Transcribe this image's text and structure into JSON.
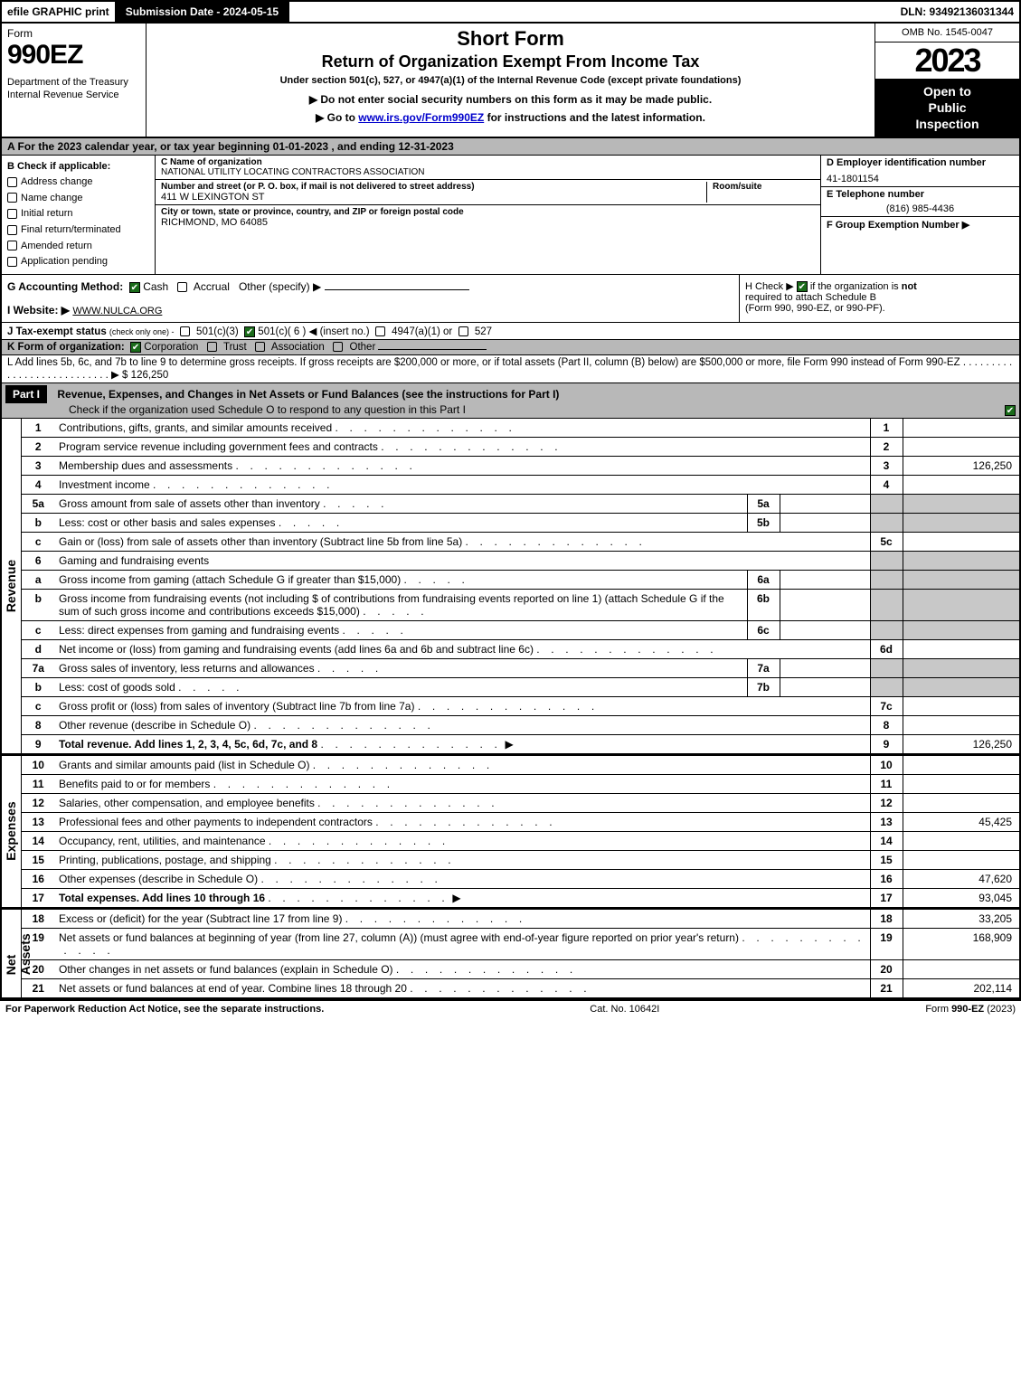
{
  "topbar": {
    "efile": "efile GRAPHIC print",
    "submission": "Submission Date - 2024-05-15",
    "dln": "DLN: 93492136031344"
  },
  "header": {
    "form_label": "Form",
    "form_number": "990EZ",
    "dept": "Department of the Treasury\nInternal Revenue Service",
    "title1": "Short Form",
    "title2": "Return of Organization Exempt From Income Tax",
    "subtitle": "Under section 501(c), 527, or 4947(a)(1) of the Internal Revenue Code (except private foundations)",
    "note1_prefix": "▶ Do not enter social security numbers on this form as it may be made public.",
    "note2_prefix": "▶ Go to ",
    "note2_link": "www.irs.gov/Form990EZ",
    "note2_suffix": " for instructions and the latest information.",
    "omb": "OMB No. 1545-0047",
    "year": "2023",
    "inspection1": "Open to",
    "inspection2": "Public",
    "inspection3": "Inspection"
  },
  "lineA": "A  For the 2023 calendar year, or tax year beginning 01-01-2023 , and ending 12-31-2023",
  "sectionB": {
    "header": "B  Check if applicable:",
    "opts": [
      "Address change",
      "Name change",
      "Initial return",
      "Final return/terminated",
      "Amended return",
      "Application pending"
    ]
  },
  "sectionC": {
    "name_label": "C Name of organization",
    "name": "NATIONAL UTILITY LOCATING CONTRACTORS ASSOCIATION",
    "street_label": "Number and street (or P. O. box, if mail is not delivered to street address)",
    "room_label": "Room/suite",
    "street": "411 W LEXINGTON ST",
    "city_label": "City or town, state or province, country, and ZIP or foreign postal code",
    "city": "RICHMOND, MO  64085"
  },
  "sectionD": {
    "label": "D Employer identification number",
    "ein": "41-1801154",
    "tel_label": "E Telephone number",
    "tel": "(816) 985-4436",
    "grp_label": "F Group Exemption Number   ▶"
  },
  "sectionG": {
    "label": "G Accounting Method:",
    "cash": "Cash",
    "accrual": "Accrual",
    "other": "Other (specify) ▶"
  },
  "sectionH": {
    "text1": "H  Check ▶",
    "text2": "if the organization is ",
    "not": "not",
    "text3": "required to attach Schedule B",
    "text4": "(Form 990, 990-EZ, or 990-PF)."
  },
  "sectionI": {
    "label": "I Website: ▶",
    "value": "WWW.NULCA.ORG"
  },
  "sectionJ": {
    "label": "J Tax-exempt status",
    "note": "(check only one) -",
    "o1": "501(c)(3)",
    "o2": "501(c)( 6 ) ◀ (insert no.)",
    "o3": "4947(a)(1) or",
    "o4": "527"
  },
  "sectionK": {
    "label": "K Form of organization:",
    "o1": "Corporation",
    "o2": "Trust",
    "o3": "Association",
    "o4": "Other"
  },
  "sectionL": {
    "text": "L Add lines 5b, 6c, and 7b to line 9 to determine gross receipts. If gross receipts are $200,000 or more, or if total assets (Part II, column (B) below) are $500,000 or more, file Form 990 instead of Form 990-EZ",
    "dots": " .  .  .  .  .  .  .  .  .  .  .  .  .  .  .  .  .  .  .  .  .  .  .  .  .  .  . ▶ $",
    "amount": "126,250"
  },
  "partI": {
    "label": "Part I",
    "title": "Revenue, Expenses, and Changes in Net Assets or Fund Balances (see the instructions for Part I)",
    "check": "Check if the organization used Schedule O to respond to any question in this Part I"
  },
  "sideLabels": {
    "revenue": "Revenue",
    "expenses": "Expenses",
    "netassets": "Net Assets"
  },
  "revenue_lines": [
    {
      "n": "1",
      "desc": "Contributions, gifts, grants, and similar amounts received",
      "rt": "1",
      "val": ""
    },
    {
      "n": "2",
      "desc": "Program service revenue including government fees and contracts",
      "rt": "2",
      "val": ""
    },
    {
      "n": "3",
      "desc": "Membership dues and assessments",
      "rt": "3",
      "val": "126,250"
    },
    {
      "n": "4",
      "desc": "Investment income",
      "rt": "4",
      "val": ""
    },
    {
      "n": "5a",
      "desc": "Gross amount from sale of assets other than inventory",
      "sub": "5a",
      "subval": "",
      "shaded": true
    },
    {
      "n": "b",
      "desc": "Less: cost or other basis and sales expenses",
      "sub": "5b",
      "subval": "",
      "shaded": true
    },
    {
      "n": "c",
      "desc": "Gain or (loss) from sale of assets other than inventory (Subtract line 5b from line 5a)",
      "rt": "5c",
      "val": ""
    },
    {
      "n": "6",
      "desc": "Gaming and fundraising events",
      "shaded_full": true
    },
    {
      "n": "a",
      "desc": "Gross income from gaming (attach Schedule G if greater than $15,000)",
      "sub": "6a",
      "subval": "",
      "shaded": true
    },
    {
      "n": "b",
      "desc": "Gross income from fundraising events (not including $                         of contributions from fundraising events reported on line 1) (attach Schedule G if the sum of such gross income and contributions exceeds $15,000)",
      "sub": "6b",
      "subval": "",
      "shaded": true
    },
    {
      "n": "c",
      "desc": "Less: direct expenses from gaming and fundraising events",
      "sub": "6c",
      "subval": "",
      "shaded": true
    },
    {
      "n": "d",
      "desc": "Net income or (loss) from gaming and fundraising events (add lines 6a and 6b and subtract line 6c)",
      "rt": "6d",
      "val": ""
    },
    {
      "n": "7a",
      "desc": "Gross sales of inventory, less returns and allowances",
      "sub": "7a",
      "subval": "",
      "shaded": true
    },
    {
      "n": "b",
      "desc": "Less: cost of goods sold",
      "sub": "7b",
      "subval": "",
      "shaded": true
    },
    {
      "n": "c",
      "desc": "Gross profit or (loss) from sales of inventory (Subtract line 7b from line 7a)",
      "rt": "7c",
      "val": ""
    },
    {
      "n": "8",
      "desc": "Other revenue (describe in Schedule O)",
      "rt": "8",
      "val": ""
    },
    {
      "n": "9",
      "desc": "Total revenue. Add lines 1, 2, 3, 4, 5c, 6d, 7c, and 8",
      "rt": "9",
      "val": "126,250",
      "bold": true,
      "arrow": true
    }
  ],
  "expense_lines": [
    {
      "n": "10",
      "desc": "Grants and similar amounts paid (list in Schedule O)",
      "rt": "10",
      "val": ""
    },
    {
      "n": "11",
      "desc": "Benefits paid to or for members",
      "rt": "11",
      "val": ""
    },
    {
      "n": "12",
      "desc": "Salaries, other compensation, and employee benefits",
      "rt": "12",
      "val": ""
    },
    {
      "n": "13",
      "desc": "Professional fees and other payments to independent contractors",
      "rt": "13",
      "val": "45,425"
    },
    {
      "n": "14",
      "desc": "Occupancy, rent, utilities, and maintenance",
      "rt": "14",
      "val": ""
    },
    {
      "n": "15",
      "desc": "Printing, publications, postage, and shipping",
      "rt": "15",
      "val": ""
    },
    {
      "n": "16",
      "desc": "Other expenses (describe in Schedule O)",
      "rt": "16",
      "val": "47,620"
    },
    {
      "n": "17",
      "desc": "Total expenses. Add lines 10 through 16",
      "rt": "17",
      "val": "93,045",
      "bold": true,
      "arrow": true
    }
  ],
  "netasset_lines": [
    {
      "n": "18",
      "desc": "Excess or (deficit) for the year (Subtract line 17 from line 9)",
      "rt": "18",
      "val": "33,205"
    },
    {
      "n": "19",
      "desc": "Net assets or fund balances at beginning of year (from line 27, column (A)) (must agree with end-of-year figure reported on prior year's return)",
      "rt": "19",
      "val": "168,909"
    },
    {
      "n": "20",
      "desc": "Other changes in net assets or fund balances (explain in Schedule O)",
      "rt": "20",
      "val": ""
    },
    {
      "n": "21",
      "desc": "Net assets or fund balances at end of year. Combine lines 18 through 20",
      "rt": "21",
      "val": "202,114"
    }
  ],
  "footer": {
    "left": "For Paperwork Reduction Act Notice, see the separate instructions.",
    "center": "Cat. No. 10642I",
    "right": "Form 990-EZ (2023)"
  }
}
